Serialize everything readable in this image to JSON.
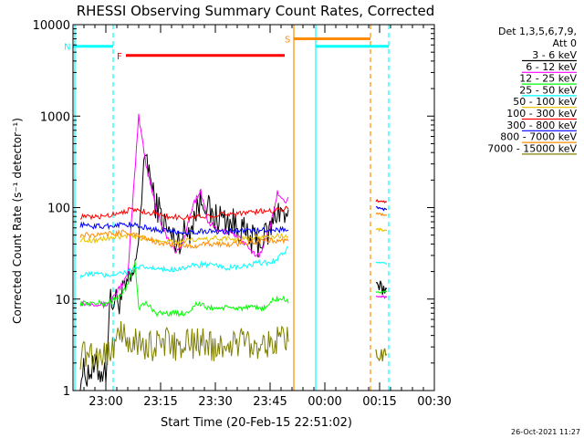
{
  "chart_data": {
    "type": "line",
    "title": "RHESSI Observing Summary Count Rates, Corrected",
    "xlabel": "Start Time (20-Feb-15 22:51:02)",
    "ylabel": "Corrected Count Rate (s⁻¹ detector⁻¹)",
    "y_scale": "log",
    "ylim": [
      1,
      10000
    ],
    "xlim_minutes": [
      0,
      99
    ],
    "x_ticks": [
      {
        "label": "23:00",
        "minute": 9
      },
      {
        "label": "23:15",
        "minute": 24
      },
      {
        "label": "23:30",
        "minute": 39
      },
      {
        "label": "23:45",
        "minute": 54
      },
      {
        "label": "00:00",
        "minute": 69
      },
      {
        "label": "00:15",
        "minute": 84
      },
      {
        "label": "00:30",
        "minute": 99
      }
    ],
    "y_ticks": [
      {
        "label": "1",
        "value": 1
      },
      {
        "label": "10",
        "value": 10
      },
      {
        "label": "100",
        "value": 100
      },
      {
        "label": "1000",
        "value": 1000
      },
      {
        "label": "10000",
        "value": 10000
      }
    ],
    "legend": {
      "header_line1": "Det 1,3,5,6,7,9,",
      "header_line2": "Att 0",
      "placement": "right"
    },
    "series": [
      {
        "name": "3 - 6 keV",
        "color": "#000000",
        "points": [
          [
            2,
            1.5
          ],
          [
            6,
            1.7
          ],
          [
            9,
            1.6
          ],
          [
            10,
            9
          ],
          [
            13,
            10
          ],
          [
            15,
            14
          ],
          [
            17,
            20
          ],
          [
            20,
            420
          ],
          [
            22,
            130
          ],
          [
            26,
            55
          ],
          [
            28,
            42
          ],
          [
            32,
            58
          ],
          [
            34,
            100
          ],
          [
            36,
            130
          ],
          [
            38,
            75
          ],
          [
            40,
            80
          ],
          [
            43,
            70
          ],
          [
            46,
            60
          ],
          [
            48,
            45
          ],
          [
            51,
            42
          ],
          [
            54,
            55
          ],
          [
            56,
            100
          ],
          [
            58,
            80
          ],
          [
            59,
            95
          ]
        ],
        "segment2": [
          [
            83,
            13
          ],
          [
            86,
            13
          ]
        ]
      },
      {
        "name": "6 - 12 keV",
        "color": "#ff00ff",
        "points": [
          [
            2,
            9
          ],
          [
            6,
            9
          ],
          [
            9,
            8.5
          ],
          [
            12,
            12
          ],
          [
            15,
            18
          ],
          [
            18,
            1000
          ],
          [
            20,
            300
          ],
          [
            23,
            90
          ],
          [
            26,
            45
          ],
          [
            28,
            32
          ],
          [
            30,
            40
          ],
          [
            33,
            110
          ],
          [
            35,
            150
          ],
          [
            37,
            70
          ],
          [
            40,
            55
          ],
          [
            43,
            55
          ],
          [
            46,
            45
          ],
          [
            49,
            32
          ],
          [
            51,
            30
          ],
          [
            54,
            60
          ],
          [
            56,
            150
          ],
          [
            58,
            110
          ],
          [
            59,
            130
          ]
        ],
        "segment2": [
          [
            83,
            11
          ],
          [
            86,
            10.5
          ]
        ]
      },
      {
        "name": "12 - 25 keV",
        "color": "#00ff00",
        "points": [
          [
            2,
            9
          ],
          [
            6,
            9
          ],
          [
            9,
            9
          ],
          [
            12,
            10
          ],
          [
            15,
            14
          ],
          [
            17,
            26
          ],
          [
            18,
            8
          ],
          [
            20,
            9
          ],
          [
            23,
            7
          ],
          [
            26,
            7
          ],
          [
            29,
            7
          ],
          [
            31,
            7
          ],
          [
            34,
            9
          ],
          [
            37,
            8
          ],
          [
            40,
            8
          ],
          [
            43,
            8
          ],
          [
            46,
            8
          ],
          [
            49,
            8
          ],
          [
            51,
            8
          ],
          [
            53,
            8
          ],
          [
            55,
            10
          ],
          [
            58,
            10
          ],
          [
            59,
            9
          ]
        ],
        "segment2": [
          [
            83,
            12
          ],
          [
            86,
            12
          ]
        ]
      },
      {
        "name": "25 - 50 keV",
        "color": "#00ffff",
        "points": [
          [
            2,
            18
          ],
          [
            6,
            19
          ],
          [
            9,
            18
          ],
          [
            12,
            19
          ],
          [
            15,
            20
          ],
          [
            18,
            22
          ],
          [
            21,
            22
          ],
          [
            24,
            21
          ],
          [
            27,
            21
          ],
          [
            30,
            22
          ],
          [
            33,
            23
          ],
          [
            36,
            24
          ],
          [
            39,
            23
          ],
          [
            42,
            22
          ],
          [
            45,
            22
          ],
          [
            48,
            23
          ],
          [
            51,
            25
          ],
          [
            54,
            25
          ],
          [
            56,
            28
          ],
          [
            58,
            33
          ],
          [
            59,
            37
          ]
        ],
        "segment2": [
          [
            83,
            25
          ],
          [
            86,
            24
          ]
        ]
      },
      {
        "name": "50 - 100 keV",
        "color": "#e8c000",
        "points": [
          [
            2,
            45
          ],
          [
            6,
            44
          ],
          [
            9,
            46
          ],
          [
            12,
            47
          ],
          [
            15,
            49
          ],
          [
            18,
            47
          ],
          [
            21,
            45
          ],
          [
            24,
            44
          ],
          [
            27,
            43
          ],
          [
            30,
            43
          ],
          [
            33,
            44
          ],
          [
            36,
            45
          ],
          [
            39,
            46
          ],
          [
            42,
            46
          ],
          [
            45,
            45
          ],
          [
            48,
            46
          ],
          [
            51,
            47
          ],
          [
            54,
            48
          ],
          [
            56,
            49
          ],
          [
            58,
            49
          ],
          [
            59,
            48
          ]
        ],
        "segment2": [
          [
            83,
            58
          ],
          [
            86,
            56
          ]
        ]
      },
      {
        "name": "100 - 300 keV",
        "color": "#ff0000",
        "points": [
          [
            2,
            80
          ],
          [
            5,
            78
          ],
          [
            8,
            80
          ],
          [
            11,
            85
          ],
          [
            14,
            92
          ],
          [
            17,
            95
          ],
          [
            20,
            90
          ],
          [
            23,
            85
          ],
          [
            26,
            80
          ],
          [
            29,
            78
          ],
          [
            32,
            78
          ],
          [
            35,
            80
          ],
          [
            38,
            82
          ],
          [
            41,
            85
          ],
          [
            44,
            87
          ],
          [
            47,
            88
          ],
          [
            50,
            90
          ],
          [
            53,
            92
          ],
          [
            56,
            95
          ],
          [
            58,
            97
          ],
          [
            59,
            96
          ]
        ],
        "segment2": [
          [
            83,
            120
          ],
          [
            86,
            115
          ]
        ]
      },
      {
        "name": "300 - 800 keV",
        "color": "#0000ff",
        "points": [
          [
            2,
            65
          ],
          [
            5,
            63
          ],
          [
            8,
            62
          ],
          [
            11,
            64
          ],
          [
            14,
            66
          ],
          [
            17,
            64
          ],
          [
            20,
            60
          ],
          [
            23,
            57
          ],
          [
            26,
            55
          ],
          [
            29,
            54
          ],
          [
            32,
            54
          ],
          [
            35,
            55
          ],
          [
            38,
            55
          ],
          [
            41,
            55
          ],
          [
            44,
            55
          ],
          [
            47,
            56
          ],
          [
            50,
            56
          ],
          [
            53,
            57
          ],
          [
            56,
            57
          ],
          [
            58,
            58
          ],
          [
            59,
            57
          ]
        ],
        "segment2": [
          [
            83,
            100
          ],
          [
            86,
            95
          ]
        ]
      },
      {
        "name": "800 - 7000 keV",
        "color": "#ff8c00",
        "points": [
          [
            2,
            50
          ],
          [
            5,
            50
          ],
          [
            8,
            50
          ],
          [
            11,
            52
          ],
          [
            14,
            54
          ],
          [
            17,
            50
          ],
          [
            20,
            46
          ],
          [
            23,
            42
          ],
          [
            26,
            40
          ],
          [
            29,
            38
          ],
          [
            32,
            38
          ],
          [
            35,
            39
          ],
          [
            38,
            40
          ],
          [
            41,
            40
          ],
          [
            44,
            40
          ],
          [
            47,
            41
          ],
          [
            50,
            42
          ],
          [
            53,
            43
          ],
          [
            56,
            44
          ],
          [
            58,
            44
          ],
          [
            59,
            43
          ]
        ],
        "segment2": [
          [
            83,
            85
          ],
          [
            86,
            82
          ]
        ]
      },
      {
        "name": "7000 - 15000 keV",
        "color": "#808000",
        "points": [
          [
            2,
            2.5
          ],
          [
            5,
            2.5
          ],
          [
            8,
            2.5
          ],
          [
            10,
            2.6
          ],
          [
            12,
            4
          ],
          [
            14,
            3.8
          ],
          [
            16,
            3.5
          ],
          [
            18,
            3.3
          ],
          [
            20,
            3
          ],
          [
            23,
            3.2
          ],
          [
            26,
            3.3
          ],
          [
            29,
            3
          ],
          [
            32,
            3.2
          ],
          [
            35,
            3.4
          ],
          [
            38,
            3.1
          ],
          [
            41,
            3
          ],
          [
            44,
            3.3
          ],
          [
            47,
            3.5
          ],
          [
            50,
            3.2
          ],
          [
            53,
            3.4
          ],
          [
            56,
            3.4
          ],
          [
            59,
            3.4
          ]
        ],
        "segment2": [
          [
            83,
            2.5
          ],
          [
            86,
            2.5
          ]
        ]
      }
    ],
    "vertical_markers": [
      {
        "minute": 0.5,
        "color": "#00ffff",
        "style": "solid"
      },
      {
        "minute": 11,
        "color": "#00ffff",
        "style": "dashed"
      },
      {
        "minute": 60.5,
        "color": "#ff8c00",
        "style": "solid"
      },
      {
        "minute": 66.5,
        "color": "#00ffff",
        "style": "solid"
      },
      {
        "minute": 81.5,
        "color": "#ff8c00",
        "style": "dashed"
      },
      {
        "minute": 86.5,
        "color": "#00ffff",
        "style": "dashed"
      }
    ],
    "flag_bars": [
      {
        "label": "N",
        "color": "#00ffff",
        "x0": 0,
        "x1": 11,
        "value": 5800
      },
      {
        "label": "",
        "color": "#00ffff",
        "x0": 66.5,
        "x1": 86.5,
        "value": 5800
      },
      {
        "label": "F",
        "color": "#ff0000",
        "x0": 14.5,
        "x1": 58,
        "value": 4600
      },
      {
        "label": "S",
        "color": "#ff8c00",
        "x0": 60.5,
        "x1": 81.5,
        "value": 7000
      }
    ]
  },
  "footer": {
    "timestamp": "26-Oct-2021 11:27"
  }
}
